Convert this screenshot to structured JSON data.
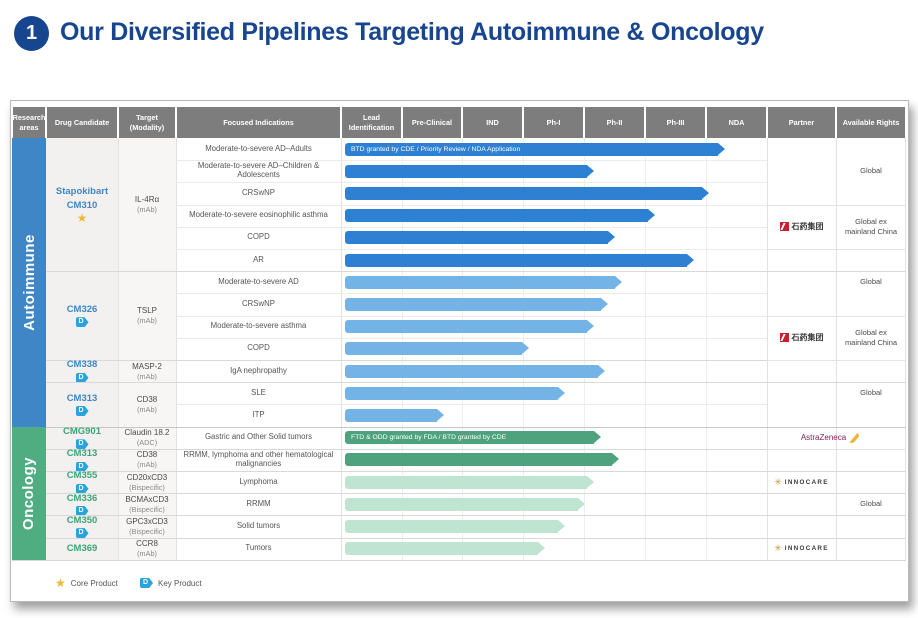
{
  "slide": {
    "badge": "1",
    "title": "Our Diversified Pipelines Targeting Autoimmune & Oncology"
  },
  "header": {
    "columns": [
      "Research areas",
      "Drug Candidate",
      "Target (Modality)",
      "Focused Indications",
      "Lead Identification",
      "Pre-Clinical",
      "IND",
      "Ph-I",
      "Ph-II",
      "Ph-III",
      "NDA",
      "Partner",
      "Available Rights"
    ]
  },
  "chart_data": {
    "type": "bar",
    "title": "Our Diversified Pipelines Targeting Autoimmune & Oncology",
    "x_axis_stages": [
      "Lead Identification",
      "Pre-Clinical",
      "IND",
      "Ph-I",
      "Ph-II",
      "Ph-III",
      "NDA"
    ],
    "value_unit": "stage columns reached (0 = start of Lead Identification, 7 = end of NDA)",
    "sections": [
      {
        "name": "Autoimmune",
        "groups": [
          {
            "candidate": "Stapokibart",
            "code": "CM310",
            "marker": "core",
            "target": "IL-4Rα",
            "modality": "(mAb)",
            "rows": [
              {
                "indication": "Moderate-to-severe AD–Adults",
                "stage": 6.19,
                "tone": "strong",
                "bar_label": "BTD granted by CDE / Priority Review / NDA Application"
              },
              {
                "indication": "Moderate-to-severe AD–Children & Adolescents",
                "stage": 4.05,
                "tone": "strong"
              },
              {
                "indication": "CRSwNP",
                "stage": 5.93,
                "tone": "strong"
              },
              {
                "indication": "Moderate-to-severe eosinophilic asthma",
                "stage": 5.04,
                "tone": "strong"
              },
              {
                "indication": "COPD",
                "stage": 4.38,
                "tone": "strong"
              },
              {
                "indication": "AR",
                "stage": 5.68,
                "tone": "strong"
              }
            ]
          },
          {
            "candidate": "CM326",
            "marker": "key",
            "target": "TSLP",
            "modality": "(mAb)",
            "rows": [
              {
                "indication": "Moderate-to-severe AD",
                "stage": 4.5,
                "tone": "light"
              },
              {
                "indication": "CRSwNP",
                "stage": 4.28,
                "tone": "light"
              },
              {
                "indication": "Moderate-to-severe asthma",
                "stage": 4.04,
                "tone": "light"
              },
              {
                "indication": "COPD",
                "stage": 2.97,
                "tone": "light"
              }
            ]
          },
          {
            "candidate": "CM338",
            "marker": "key",
            "target": "MASP-2",
            "modality": "(mAb)",
            "rows": [
              {
                "indication": "IgA nephropathy",
                "stage": 4.22,
                "tone": "light"
              }
            ]
          },
          {
            "candidate": "CM313",
            "marker": "key",
            "target": "CD38",
            "modality": "(mAb)",
            "rows": [
              {
                "indication": "SLE",
                "stage": 3.56,
                "tone": "light"
              },
              {
                "indication": "ITP",
                "stage": 1.58,
                "tone": "light"
              }
            ]
          }
        ]
      },
      {
        "name": "Oncology",
        "groups": [
          {
            "candidate": "CMG901",
            "marker": "key",
            "target": "Claudin 18.2",
            "modality": "(ADC)",
            "rows": [
              {
                "indication": "Gastric and Other Solid tumors",
                "stage": 4.15,
                "tone": "strong",
                "bar_label": "FTD & ODD granted by FDA / BTD granted by CDE"
              }
            ]
          },
          {
            "candidate": "CM313",
            "marker": "key",
            "target": "CD38",
            "modality": "(mAb)",
            "rows": [
              {
                "indication": "RRMM, lymphoma and other hematological malignancies",
                "stage": 4.46,
                "tone": "strong"
              }
            ]
          },
          {
            "candidate": "CM355",
            "marker": "key",
            "target": "CD20xCD3",
            "modality": "(Bispecific)",
            "rows": [
              {
                "indication": "Lymphoma",
                "stage": 4.04,
                "tone": "light"
              }
            ]
          },
          {
            "candidate": "CM336",
            "marker": "key",
            "target": "BCMAxCD3",
            "modality": "(Bispecific)",
            "rows": [
              {
                "indication": "RRMM",
                "stage": 3.89,
                "tone": "light"
              }
            ]
          },
          {
            "candidate": "CM350",
            "marker": "key",
            "target": "GPC3xCD3",
            "modality": "(Bispecific)",
            "rows": [
              {
                "indication": "Solid tumors",
                "stage": 3.57,
                "tone": "light"
              }
            ]
          },
          {
            "candidate": "CM369",
            "marker": "none",
            "target": "CCR8",
            "modality": "(mAb)",
            "rows": [
              {
                "indication": "Tumors",
                "stage": 3.24,
                "tone": "light"
              }
            ]
          }
        ]
      }
    ],
    "partners": [
      {
        "type": "cspc",
        "label": "石药集团",
        "rows": [
          3,
          4
        ]
      },
      {
        "type": "cspc",
        "label": "石药集团",
        "rows": [
          8,
          9
        ]
      },
      {
        "type": "astrazeneca",
        "label": "AstraZeneca",
        "rows": [
          13,
          13
        ]
      },
      {
        "type": "innocare",
        "label": "INNOCARE",
        "rows": [
          15,
          15
        ]
      },
      {
        "type": "innocare",
        "label": "INNOCARE",
        "rows": [
          18,
          18
        ]
      }
    ],
    "available_rights": [
      {
        "label": "Global",
        "rows": [
          0,
          2
        ]
      },
      {
        "label": "Global ex mainland China",
        "rows": [
          3,
          4
        ]
      },
      {
        "label": "Global",
        "rows": [
          5,
          7
        ]
      },
      {
        "label": "Global ex mainland China",
        "rows": [
          8,
          9
        ]
      },
      {
        "label": "Global",
        "rows": [
          10,
          12
        ]
      },
      {
        "label": "Global",
        "rows": [
          14,
          18
        ]
      }
    ]
  },
  "legend": [
    {
      "marker": "core",
      "label": "Core Product"
    },
    {
      "marker": "key",
      "label": "Key Product"
    }
  ],
  "colors": {
    "title_blue": "#17458F",
    "header_gray": "#7d7d7d",
    "autoimmune": "#3E86C6",
    "oncology": "#50AC81",
    "bar_blue_strong": "#2E80D2",
    "bar_blue_light": "#74B3E6",
    "bar_green_strong": "#4EA37E",
    "bar_green_light": "#BFE5D2",
    "key_icon_blue": "#2AA3DA",
    "star_gold": "#F1B93C"
  }
}
